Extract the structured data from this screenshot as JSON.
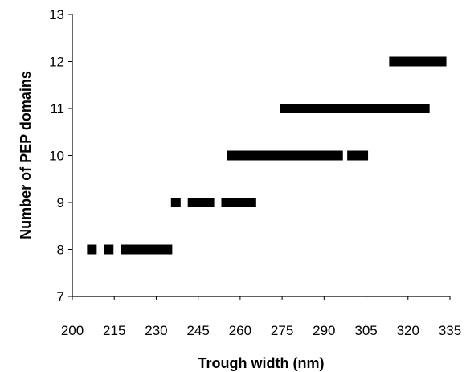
{
  "chart_data": {
    "type": "scatter",
    "xlabel": "Trough width (nm)",
    "ylabel": "Number of PEP domains",
    "xlim": [
      200,
      335
    ],
    "ylim": [
      7,
      13
    ],
    "x_ticks": [
      "200",
      "215",
      "230",
      "245",
      "260",
      "275",
      "290",
      "305",
      "320",
      "335"
    ],
    "y_ticks": [
      "7",
      "8",
      "9",
      "10",
      "11",
      "12",
      "13"
    ],
    "grid": false,
    "legend": "none",
    "marker_color": "#000000",
    "series": [
      {
        "points": [
          [
            207,
            8
          ],
          [
            213,
            8
          ],
          [
            219,
            8
          ],
          [
            220,
            8
          ],
          [
            221,
            8
          ],
          [
            222,
            8
          ],
          [
            223,
            8
          ],
          [
            224,
            8
          ],
          [
            225,
            8
          ],
          [
            226,
            8
          ],
          [
            227,
            8
          ],
          [
            228,
            8
          ],
          [
            229,
            8
          ],
          [
            230,
            8
          ],
          [
            231,
            8
          ],
          [
            232,
            8
          ],
          [
            233,
            8
          ],
          [
            234,
            8
          ],
          [
            237,
            9
          ],
          [
            243,
            9
          ],
          [
            244,
            9
          ],
          [
            245,
            9
          ],
          [
            246,
            9
          ],
          [
            247,
            9
          ],
          [
            248,
            9
          ],
          [
            249,
            9
          ],
          [
            255,
            9
          ],
          [
            256,
            9
          ],
          [
            257,
            9
          ],
          [
            258,
            9
          ],
          [
            259,
            9
          ],
          [
            260,
            9
          ],
          [
            261,
            9
          ],
          [
            262,
            9
          ],
          [
            263,
            9
          ],
          [
            264,
            9
          ],
          [
            257,
            10
          ],
          [
            258,
            10
          ],
          [
            259,
            10
          ],
          [
            260,
            10
          ],
          [
            261,
            10
          ],
          [
            262,
            10
          ],
          [
            265,
            10
          ],
          [
            266,
            10
          ],
          [
            267,
            10
          ],
          [
            268,
            10
          ],
          [
            269,
            10
          ],
          [
            270,
            10
          ],
          [
            271,
            10
          ],
          [
            272,
            10
          ],
          [
            273,
            10
          ],
          [
            274,
            10
          ],
          [
            275,
            10
          ],
          [
            276,
            10
          ],
          [
            277,
            10
          ],
          [
            278,
            10
          ],
          [
            279,
            10
          ],
          [
            280,
            10
          ],
          [
            281,
            10
          ],
          [
            282,
            10
          ],
          [
            283,
            10
          ],
          [
            284,
            10
          ],
          [
            285,
            10
          ],
          [
            286,
            10
          ],
          [
            287,
            10
          ],
          [
            288,
            10
          ],
          [
            289,
            10
          ],
          [
            290,
            10
          ],
          [
            291,
            10
          ],
          [
            292,
            10
          ],
          [
            293,
            10
          ],
          [
            294,
            10
          ],
          [
            295,
            10
          ],
          [
            300,
            10
          ],
          [
            301,
            10
          ],
          [
            302,
            10
          ],
          [
            303,
            10
          ],
          [
            304,
            10
          ],
          [
            276,
            11
          ],
          [
            277,
            11
          ],
          [
            278,
            11
          ],
          [
            280,
            11
          ],
          [
            281,
            11
          ],
          [
            282,
            11
          ],
          [
            283,
            11
          ],
          [
            284,
            11
          ],
          [
            285,
            11
          ],
          [
            286,
            11
          ],
          [
            287,
            11
          ],
          [
            288,
            11
          ],
          [
            289,
            11
          ],
          [
            290,
            11
          ],
          [
            291,
            11
          ],
          [
            292,
            11
          ],
          [
            293,
            11
          ],
          [
            294,
            11
          ],
          [
            295,
            11
          ],
          [
            296,
            11
          ],
          [
            297,
            11
          ],
          [
            298,
            11
          ],
          [
            299,
            11
          ],
          [
            300,
            11
          ],
          [
            301,
            11
          ],
          [
            302,
            11
          ],
          [
            303,
            11
          ],
          [
            304,
            11
          ],
          [
            305,
            11
          ],
          [
            306,
            11
          ],
          [
            307,
            11
          ],
          [
            308,
            11
          ],
          [
            309,
            11
          ],
          [
            310,
            11
          ],
          [
            311,
            11
          ],
          [
            312,
            11
          ],
          [
            313,
            11
          ],
          [
            314,
            11
          ],
          [
            315,
            11
          ],
          [
            316,
            11
          ],
          [
            317,
            11
          ],
          [
            318,
            11
          ],
          [
            319,
            11
          ],
          [
            320,
            11
          ],
          [
            321,
            11
          ],
          [
            322,
            11
          ],
          [
            323,
            11
          ],
          [
            324,
            11
          ],
          [
            325,
            11
          ],
          [
            326,
            11
          ],
          [
            315,
            12
          ],
          [
            316,
            12
          ],
          [
            317,
            12
          ],
          [
            318,
            12
          ],
          [
            319,
            12
          ],
          [
            320,
            12
          ],
          [
            321,
            12
          ],
          [
            322,
            12
          ],
          [
            323,
            12
          ],
          [
            324,
            12
          ],
          [
            325,
            12
          ],
          [
            326,
            12
          ],
          [
            327,
            12
          ],
          [
            328,
            12
          ],
          [
            330,
            12
          ],
          [
            331,
            12
          ],
          [
            332,
            12
          ]
        ]
      }
    ]
  }
}
